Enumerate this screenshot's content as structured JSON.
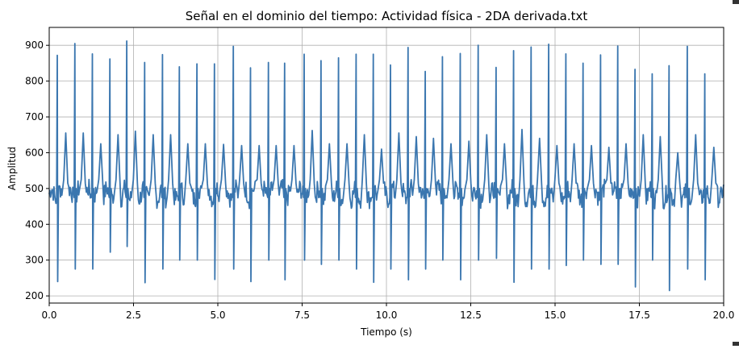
{
  "chart_data": {
    "type": "line",
    "title": "Señal en el dominio del tiempo: Actividad física - 2DA derivada.txt",
    "xlabel": "Tiempo (s)",
    "ylabel": "Amplitud",
    "xlim": [
      0,
      20
    ],
    "ylim": [
      180,
      950
    ],
    "grid": true,
    "x_ticks": [
      0.0,
      2.5,
      5.0,
      7.5,
      10.0,
      12.5,
      15.0,
      17.5,
      20.0
    ],
    "x_tick_labels": [
      "0.0",
      "2.5",
      "5.0",
      "7.5",
      "10.0",
      "12.5",
      "15.0",
      "17.5",
      "20.0"
    ],
    "y_ticks": [
      200,
      300,
      400,
      500,
      600,
      700,
      800,
      900
    ],
    "y_tick_labels": [
      "200",
      "300",
      "400",
      "500",
      "600",
      "700",
      "800",
      "900"
    ],
    "series_color": "#3a76af",
    "baseline": 485,
    "beats": [
      {
        "t": 0.24,
        "peak": 872,
        "trough": 240,
        "twave": 655
      },
      {
        "t": 0.76,
        "peak": 905,
        "trough": 275,
        "twave": 655
      },
      {
        "t": 1.28,
        "peak": 876,
        "trough": 275,
        "twave": 625
      },
      {
        "t": 1.8,
        "peak": 862,
        "trough": 322,
        "twave": 650
      },
      {
        "t": 2.3,
        "peak": 912,
        "trough": 338,
        "twave": 660
      },
      {
        "t": 2.83,
        "peak": 852,
        "trough": 237,
        "twave": 650
      },
      {
        "t": 3.36,
        "peak": 874,
        "trough": 275,
        "twave": 650
      },
      {
        "t": 3.86,
        "peak": 840,
        "trough": 300,
        "twave": 625
      },
      {
        "t": 4.38,
        "peak": 848,
        "trough": 300,
        "twave": 625
      },
      {
        "t": 4.9,
        "peak": 848,
        "trough": 246,
        "twave": 623
      },
      {
        "t": 5.46,
        "peak": 897,
        "trough": 275,
        "twave": 620
      },
      {
        "t": 5.97,
        "peak": 837,
        "trough": 240,
        "twave": 620
      },
      {
        "t": 6.5,
        "peak": 852,
        "trough": 300,
        "twave": 620
      },
      {
        "t": 6.98,
        "peak": 850,
        "trough": 245,
        "twave": 620
      },
      {
        "t": 7.56,
        "peak": 875,
        "trough": 300,
        "twave": 662
      },
      {
        "t": 8.06,
        "peak": 857,
        "trough": 288,
        "twave": 625
      },
      {
        "t": 8.58,
        "peak": 865,
        "trough": 300,
        "twave": 625
      },
      {
        "t": 9.1,
        "peak": 875,
        "trough": 275,
        "twave": 650
      },
      {
        "t": 9.61,
        "peak": 875,
        "trough": 238,
        "twave": 610
      },
      {
        "t": 10.12,
        "peak": 845,
        "trough": 275,
        "twave": 655
      },
      {
        "t": 10.64,
        "peak": 894,
        "trough": 245,
        "twave": 645
      },
      {
        "t": 11.15,
        "peak": 827,
        "trough": 275,
        "twave": 640
      },
      {
        "t": 11.66,
        "peak": 868,
        "trough": 300,
        "twave": 625
      },
      {
        "t": 12.19,
        "peak": 877,
        "trough": 245,
        "twave": 632
      },
      {
        "t": 12.72,
        "peak": 900,
        "trough": 300,
        "twave": 650
      },
      {
        "t": 13.25,
        "peak": 838,
        "trough": 305,
        "twave": 625
      },
      {
        "t": 13.77,
        "peak": 885,
        "trough": 238,
        "twave": 665
      },
      {
        "t": 14.29,
        "peak": 895,
        "trough": 275,
        "twave": 640
      },
      {
        "t": 14.81,
        "peak": 903,
        "trough": 275,
        "twave": 620
      },
      {
        "t": 15.32,
        "peak": 876,
        "trough": 285,
        "twave": 625
      },
      {
        "t": 15.83,
        "peak": 850,
        "trough": 300,
        "twave": 620
      },
      {
        "t": 16.35,
        "peak": 873,
        "trough": 288,
        "twave": 615
      },
      {
        "t": 16.86,
        "peak": 898,
        "trough": 288,
        "twave": 625
      },
      {
        "t": 17.37,
        "peak": 833,
        "trough": 225,
        "twave": 650
      },
      {
        "t": 17.88,
        "peak": 820,
        "trough": 300,
        "twave": 645
      },
      {
        "t": 18.38,
        "peak": 843,
        "trough": 215,
        "twave": 600
      },
      {
        "t": 18.92,
        "peak": 897,
        "trough": 275,
        "twave": 650
      },
      {
        "t": 19.44,
        "peak": 820,
        "trough": 245,
        "twave": 615
      }
    ]
  }
}
